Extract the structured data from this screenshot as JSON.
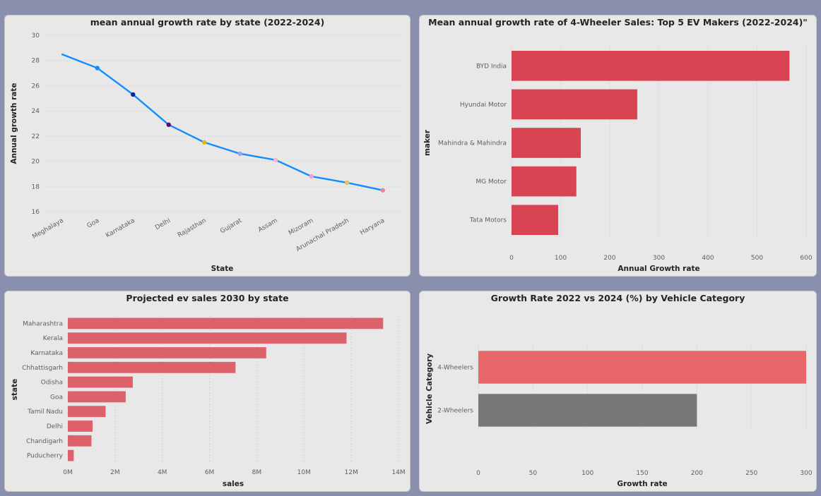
{
  "charts": {
    "c1": {
      "title": "mean annual growth rate by state (2022-2024)",
      "xlabel": "State",
      "ylabel": "Annual growth rate"
    },
    "c2": {
      "title": "Mean annual growth rate of 4-Wheeler Sales: Top 5 EV Makers (2022-2024)\"",
      "xlabel": "Annual Growth rate",
      "ylabel": "maker"
    },
    "c3": {
      "title": "Projected ev sales 2030 by state",
      "xlabel": "sales",
      "ylabel": "state"
    },
    "c4": {
      "title": "Growth Rate 2022 vs 2024 (%) by Vehicle Category",
      "xlabel": "Growth rate",
      "ylabel": "Vehicle Category"
    }
  },
  "chart_data": [
    {
      "type": "line",
      "title": "mean annual growth rate by state (2022-2024)",
      "xlabel": "State",
      "ylabel": "Annual growth rate",
      "categories": [
        "Meghalaya",
        "Goa",
        "Karnataka",
        "Delhi",
        "Rajasthan",
        "Gujarat",
        "Assam",
        "Mizoram",
        "Arunachal Pradesh",
        "Haryana"
      ],
      "values": [
        28.5,
        27.4,
        25.3,
        22.9,
        21.5,
        20.6,
        20.1,
        18.8,
        18.3,
        17.7
      ],
      "ylim": [
        16,
        30
      ],
      "yticks": [
        16,
        18,
        20,
        22,
        24,
        26,
        28,
        30
      ],
      "grid": true,
      "line_color": "#118dff",
      "marker_colors": [
        null,
        "#118dff",
        "#12239e",
        "#6b007b",
        "#e6b800",
        "#a0a0e8",
        "#f4b6c2",
        "#f0a0d0",
        "#e6c35c",
        "#e884a8"
      ]
    },
    {
      "type": "bar",
      "orientation": "horizontal",
      "title": "Mean annual growth rate of 4-Wheeler Sales: Top 5 EV Makers (2022-2024)\"",
      "xlabel": "Annual Growth rate",
      "ylabel": "maker",
      "categories": [
        "BYD India",
        "Hyundai Motor",
        "Mahindra & Mahindra",
        "MG Motor",
        "Tata Motors"
      ],
      "values": [
        566,
        256,
        141,
        132,
        95
      ],
      "xlim": [
        0,
        600
      ],
      "xticks": [
        0,
        100,
        200,
        300,
        400,
        500,
        600
      ],
      "grid": true,
      "color": "#d94452"
    },
    {
      "type": "bar",
      "orientation": "horizontal",
      "title": "Projected ev sales 2030 by state",
      "xlabel": "sales",
      "ylabel": "state",
      "categories": [
        "Maharashtra",
        "Kerala",
        "Karnataka",
        "Chhattisgarh",
        "Odisha",
        "Goa",
        "Tamil Nadu",
        "Delhi",
        "Chandigarh",
        "Puducherry"
      ],
      "values": [
        13350000,
        11800000,
        8400000,
        7100000,
        2750000,
        2450000,
        1600000,
        1050000,
        1000000,
        250000
      ],
      "xlim": [
        0,
        14000000
      ],
      "xticks": [
        0,
        2000000,
        4000000,
        6000000,
        8000000,
        10000000,
        12000000,
        14000000
      ],
      "xtick_labels": [
        "0M",
        "2M",
        "4M",
        "6M",
        "8M",
        "10M",
        "12M",
        "14M"
      ],
      "grid": true,
      "color": "#dd616b"
    },
    {
      "type": "bar",
      "orientation": "horizontal",
      "title": "Growth Rate 2022 vs 2024 (%) by Vehicle Category",
      "xlabel": "Growth rate",
      "ylabel": "Vehicle Category",
      "categories": [
        "4-Wheelers",
        "2-Wheelers"
      ],
      "values": [
        300,
        200
      ],
      "colors": [
        "#e8686a",
        "#777777"
      ],
      "xlim": [
        0,
        300
      ],
      "xticks": [
        0,
        50,
        100,
        150,
        200,
        250,
        300
      ],
      "grid": true
    }
  ]
}
